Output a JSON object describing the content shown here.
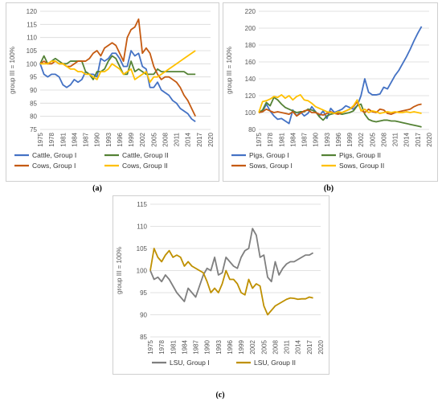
{
  "captions": {
    "a": "(a)",
    "b": "(b)",
    "c": "(c)"
  },
  "colors": {
    "blue": "#4472c4",
    "green": "#548235",
    "orange": "#c55a11",
    "yellow": "#ffc000",
    "gray": "#7f7f7f",
    "gold": "#bf9000"
  },
  "chart_data": [
    {
      "type": "line",
      "ylabel": "group III = 100%",
      "ylim": [
        75,
        120
      ],
      "yticks": [
        75,
        80,
        85,
        90,
        95,
        100,
        105,
        110,
        115,
        120
      ],
      "xlim": [
        1975,
        2020
      ],
      "xticks": [
        1975,
        1978,
        1981,
        1984,
        1987,
        1990,
        1993,
        1996,
        1999,
        2002,
        2005,
        2008,
        2011,
        2014,
        2017,
        2020
      ],
      "grid": true,
      "legend_position": "bottom",
      "series": [
        {
          "name": "Cattle, Group I",
          "color": "#4472c4",
          "values": [
            100,
            96,
            95,
            96,
            96,
            95,
            92,
            91,
            92,
            94,
            93,
            94,
            97,
            96,
            96,
            95,
            102,
            101,
            102,
            104,
            104,
            102,
            99,
            99,
            105,
            103,
            104,
            99,
            98,
            91,
            91,
            93,
            90,
            89,
            88,
            86,
            85,
            83,
            82,
            81,
            79,
            78
          ]
        },
        {
          "name": "Cattle, Group II",
          "color": "#548235",
          "values": [
            100,
            103,
            100,
            101,
            102,
            101,
            100,
            100,
            101,
            101,
            101,
            101,
            97,
            96,
            94,
            97,
            97,
            98,
            101,
            103,
            102,
            99,
            96,
            96,
            101,
            97,
            98,
            97,
            96,
            96,
            96,
            98,
            97,
            97,
            97,
            97,
            97,
            97,
            97,
            96,
            96,
            96
          ]
        },
        {
          "name": "Cows, Group I",
          "color": "#c55a11",
          "values": [
            100,
            101,
            100,
            100,
            101,
            100,
            100,
            99,
            99,
            100,
            101,
            101,
            101,
            102,
            104,
            105,
            103,
            106,
            107,
            108,
            107,
            104,
            101,
            110,
            113,
            114,
            117,
            104,
            106,
            104,
            99,
            96,
            94,
            95,
            95,
            94,
            93,
            91,
            88,
            86,
            83,
            80
          ]
        },
        {
          "name": "Cows, Group II",
          "color": "#ffc000",
          "values": [
            100,
            100,
            100,
            101,
            101,
            100,
            100,
            99,
            98,
            98,
            97,
            97,
            96,
            96,
            95,
            94,
            97,
            97,
            98,
            100,
            99,
            98,
            96,
            97,
            98,
            94,
            95,
            96,
            97,
            93,
            95,
            95,
            96,
            97,
            98,
            99,
            100,
            101,
            102,
            103,
            104,
            105
          ]
        }
      ],
      "start_year": 1975
    },
    {
      "type": "line",
      "ylabel": "group III = 100%",
      "ylim": [
        80,
        220
      ],
      "yticks": [
        80,
        100,
        120,
        140,
        160,
        180,
        200,
        220
      ],
      "xlim": [
        1975,
        2020
      ],
      "xticks": [
        1975,
        1978,
        1981,
        1984,
        1987,
        1990,
        1993,
        1996,
        1999,
        2002,
        2005,
        2008,
        2011,
        2014,
        2017,
        2020
      ],
      "grid": true,
      "legend_position": "bottom",
      "series": [
        {
          "name": "Pigs, Group I",
          "color": "#4472c4",
          "values": [
            100,
            101,
            110,
            102,
            96,
            92,
            93,
            90,
            87,
            103,
            96,
            101,
            96,
            99,
            107,
            101,
            96,
            102,
            93,
            105,
            100,
            102,
            104,
            108,
            106,
            104,
            108,
            120,
            140,
            124,
            121,
            121,
            122,
            130,
            128,
            136,
            144,
            150,
            158,
            166,
            175,
            185,
            194,
            202
          ]
        },
        {
          "name": "Pigs, Group II",
          "color": "#548235",
          "values": [
            100,
            103,
            112,
            108,
            118,
            115,
            110,
            106,
            104,
            102,
            100,
            101,
            101,
            104,
            103,
            101,
            95,
            91,
            96,
            98,
            99,
            99,
            98,
            99,
            100,
            102,
            108,
            110,
            98,
            92,
            90,
            89,
            90,
            91,
            91,
            90,
            90,
            89,
            88,
            87,
            86,
            85,
            84,
            83
          ]
        },
        {
          "name": "Sows, Group I",
          "color": "#c55a11",
          "values": [
            100,
            101,
            104,
            102,
            100,
            101,
            100,
            99,
            98,
            101,
            96,
            99,
            102,
            103,
            100,
            100,
            98,
            97,
            99,
            101,
            99,
            98,
            100,
            102,
            104,
            107,
            113,
            103,
            100,
            104,
            101,
            100,
            104,
            103,
            99,
            98,
            100,
            101,
            102,
            103,
            104,
            107,
            109,
            110
          ]
        },
        {
          "name": "Sows, Group II",
          "color": "#ffc000",
          "values": [
            100,
            113,
            114,
            116,
            119,
            118,
            121,
            117,
            120,
            115,
            119,
            121,
            115,
            114,
            111,
            107,
            105,
            103,
            101,
            100,
            99,
            101,
            100,
            102,
            104,
            108,
            115,
            102,
            104,
            100,
            102,
            101,
            99,
            100,
            101,
            100,
            101,
            100,
            100,
            101,
            100,
            101,
            100,
            99
          ]
        }
      ],
      "start_year": 1975
    },
    {
      "type": "line",
      "ylabel": "group III = 100%",
      "ylim": [
        85,
        115
      ],
      "yticks": [
        85,
        90,
        95,
        100,
        105,
        110,
        115
      ],
      "xlim": [
        1975,
        2020
      ],
      "xticks": [
        1975,
        1978,
        1981,
        1984,
        1987,
        1990,
        1993,
        1996,
        1999,
        2002,
        2005,
        2008,
        2011,
        2014,
        2017,
        2020
      ],
      "grid": true,
      "legend_position": "bottom",
      "series": [
        {
          "name": "LSU, Group I",
          "color": "#7f7f7f",
          "values": [
            100,
            98,
            98.5,
            97.5,
            99,
            98,
            96.5,
            95,
            94,
            93,
            96,
            95,
            94,
            96.5,
            99,
            100.5,
            100,
            103,
            99,
            99.5,
            103,
            102,
            101,
            100.5,
            103,
            104.5,
            105,
            109.5,
            108,
            103,
            103.5,
            98.5,
            97.5,
            102,
            99,
            100.5,
            101.5,
            102,
            102,
            102.5,
            103,
            103.5,
            103.5,
            104
          ]
        },
        {
          "name": "LSU, Group II",
          "color": "#bf9000",
          "values": [
            100,
            105,
            103,
            102,
            103.5,
            104.5,
            103,
            103.5,
            103,
            101,
            102,
            101,
            100.5,
            100,
            99.5,
            97.5,
            95,
            96,
            95,
            97,
            100,
            98,
            98,
            97,
            95,
            94.5,
            98,
            96,
            97,
            96.5,
            92,
            90,
            91,
            92,
            92.5,
            93,
            93.5,
            93.8,
            93.7,
            93.5,
            93.6,
            93.6,
            94,
            93.8
          ]
        }
      ],
      "start_year": 1975
    }
  ]
}
